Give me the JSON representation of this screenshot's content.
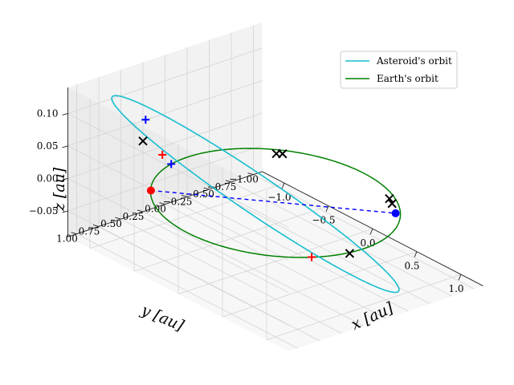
{
  "chart_data": {
    "type": "scatter",
    "projection": "3d",
    "xlabel": "x [au]",
    "ylabel": "y [au]",
    "zlabel": "z [au]",
    "xlim": [
      -1.25,
      1.25
    ],
    "ylim": [
      -1.1,
      1.1
    ],
    "zlim": [
      -0.09,
      0.14
    ],
    "xticks": [
      {
        "value": -1.0,
        "label": "−1.0"
      },
      {
        "value": -0.5,
        "label": "−0.5"
      },
      {
        "value": 0.0,
        "label": "0.0"
      },
      {
        "value": 0.5,
        "label": "0.5"
      },
      {
        "value": 1.0,
        "label": "1.0"
      }
    ],
    "yticks": [
      {
        "value": 1.0,
        "label": "1.00"
      },
      {
        "value": 0.75,
        "label": "0.75"
      },
      {
        "value": 0.5,
        "label": "0.50"
      },
      {
        "value": 0.25,
        "label": "0.25"
      },
      {
        "value": 0.0,
        "label": "0.00"
      },
      {
        "value": -0.25,
        "label": "−0.25"
      },
      {
        "value": -0.5,
        "label": "−0.50"
      },
      {
        "value": -0.75,
        "label": "−0.75"
      },
      {
        "value": -1.0,
        "label": "−1.00"
      }
    ],
    "zticks": [
      {
        "value": 0.1,
        "label": "0.10"
      },
      {
        "value": 0.05,
        "label": "0.05"
      },
      {
        "value": 0.0,
        "label": "0.00"
      },
      {
        "value": -0.05,
        "label": "−0.05"
      }
    ],
    "grid": true,
    "legend_position": "top-right",
    "series": [
      {
        "name": "Asteroid's orbit",
        "color": "#17becf",
        "kind": "ellipse-orbit",
        "semi_major_axis": 1.18,
        "eccentricity": 0.24,
        "inclination_deg": 7.0,
        "ascending_node_deg": 20.0,
        "perihelion_arg_deg": 240.0,
        "hidden_segment_style": "dashed"
      },
      {
        "name": "Earth's orbit",
        "color": "#008000",
        "kind": "circle-orbit",
        "radius": 1.0,
        "z": 0.0
      }
    ],
    "points": [
      {
        "label": "Earth position",
        "color": "#ff0000",
        "marker": "dot",
        "x": -0.72,
        "y": 0.69,
        "z": 0.0
      },
      {
        "label": "Asteroid position",
        "color": "#0000ff",
        "marker": "dot",
        "x": 0.5,
        "y": -0.86,
        "z": -0.02
      },
      {
        "label": "red cross 1",
        "color": "#ff0000",
        "marker": "plus",
        "x": -0.35,
        "y": 0.93,
        "z": 0.092
      },
      {
        "label": "red cross 2",
        "color": "#ff0000",
        "marker": "plus",
        "x": 0.88,
        "y": 0.47,
        "z": 0.0
      },
      {
        "label": "blue cross 1",
        "color": "#0000ff",
        "marker": "plus",
        "x": -0.95,
        "y": 0.52,
        "z": 0.085
      },
      {
        "label": "blue cross 2",
        "color": "#0000ff",
        "marker": "plus",
        "x": -0.98,
        "y": 0.2,
        "z": 0.0
      },
      {
        "label": "black x 1",
        "color": "#000000",
        "marker": "x",
        "x": -0.55,
        "y": 0.95,
        "z": 0.1
      },
      {
        "label": "black x 2",
        "color": "#000000",
        "marker": "x",
        "x": 1.0,
        "y": 0.16,
        "z": 0.0
      },
      {
        "label": "black x 3",
        "color": "#000000",
        "marker": "x",
        "x": -0.65,
        "y": -0.66,
        "z": 0.0
      },
      {
        "label": "black x 4",
        "color": "#000000",
        "marker": "x",
        "x": -0.62,
        "y": -0.7,
        "z": 0.0
      },
      {
        "label": "black x 5",
        "color": "#000000",
        "marker": "x",
        "x": 0.15,
        "y": -1.14,
        "z": -0.035
      },
      {
        "label": "black x 6",
        "color": "#000000",
        "marker": "x",
        "x": 0.2,
        "y": -1.12,
        "z": -0.038
      }
    ],
    "connector": {
      "from": "Earth position",
      "to": "Asteroid position",
      "color": "#0000ff",
      "style": "dashed"
    }
  }
}
